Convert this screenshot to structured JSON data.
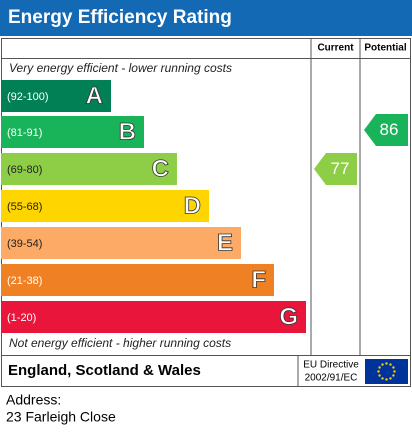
{
  "header": {
    "title": "Energy Efficiency Rating"
  },
  "columns": {
    "current": "Current",
    "potential": "Potential"
  },
  "top_note": "Very energy efficient - lower running costs",
  "bottom_note": "Not energy efficient - higher running costs",
  "bands": [
    {
      "range": "(92-100)",
      "letter": "A",
      "color": "#008054"
    },
    {
      "range": "(81-91)",
      "letter": "B",
      "color": "#19b459"
    },
    {
      "range": "(69-80)",
      "letter": "C",
      "color": "#8dce46"
    },
    {
      "range": "(55-68)",
      "letter": "D",
      "color": "#ffd500"
    },
    {
      "range": "(39-54)",
      "letter": "E",
      "color": "#fcaa65"
    },
    {
      "range": "(21-38)",
      "letter": "F",
      "color": "#ef8023"
    },
    {
      "range": "(1-20)",
      "letter": "G",
      "color": "#e9153b"
    }
  ],
  "current": {
    "value": "77",
    "color": "#8dce46"
  },
  "potential": {
    "value": "86",
    "color": "#19b459"
  },
  "footer": {
    "region": "England, Scotland & Wales",
    "directive_line1": "EU Directive",
    "directive_line2": "2002/91/EC"
  },
  "address": {
    "label": "Address:",
    "line": "23 Farleigh Close"
  }
}
